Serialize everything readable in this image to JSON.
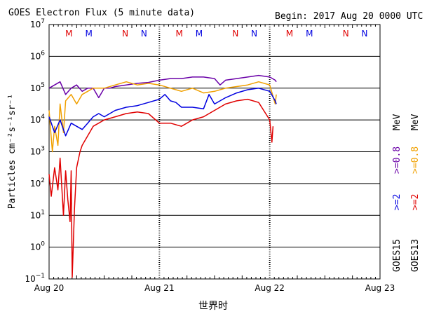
{
  "chart_data": {
    "type": "line",
    "title": "GOES Electron Flux (5 minute data)",
    "begin_label": "Begin: 2017 Aug 20 0000 UTC",
    "xlabel": "世界时",
    "ylabel": "Particles cm⁻²s⁻¹sr⁻¹",
    "x_ticks": [
      "Aug 20",
      "Aug 21",
      "Aug 22",
      "Aug 23"
    ],
    "x_range_days": [
      0,
      3
    ],
    "y_scale": "log",
    "y_range_exp": [
      -1,
      7
    ],
    "y_tick_exponents": [
      -1,
      0,
      1,
      2,
      3,
      4,
      5,
      6,
      7
    ],
    "threshold": 1000,
    "grid": "horizontal lines at each decade",
    "markers": [
      {
        "day": 0.18,
        "label": "M",
        "color": "#e00000"
      },
      {
        "day": 0.36,
        "label": "M",
        "color": "#0000e0"
      },
      {
        "day": 0.69,
        "label": "N",
        "color": "#e00000"
      },
      {
        "day": 0.86,
        "label": "N",
        "color": "#0000e0"
      },
      {
        "day": 1.18,
        "label": "M",
        "color": "#e00000"
      },
      {
        "day": 1.36,
        "label": "M",
        "color": "#0000e0"
      },
      {
        "day": 1.69,
        "label": "N",
        "color": "#e00000"
      },
      {
        "day": 1.86,
        "label": "N",
        "color": "#0000e0"
      },
      {
        "day": 2.18,
        "label": "M",
        "color": "#e00000"
      },
      {
        "day": 2.36,
        "label": "M",
        "color": "#0000e0"
      },
      {
        "day": 2.69,
        "label": "N",
        "color": "#e00000"
      },
      {
        "day": 2.86,
        "label": "N",
        "color": "#0000e0"
      }
    ],
    "legend": {
      "columns": [
        {
          "satellite": "GOES15",
          "lines": [
            {
              "text": ">=2",
              "color": "#0000e0"
            },
            {
              "text": ">=0.8",
              "color": "#6a00a8"
            }
          ],
          "unit": "MeV"
        },
        {
          "satellite": "GOES13",
          "lines": [
            {
              "text": ">=2",
              "color": "#e00000"
            },
            {
              "text": ">=0.8",
              "color": "#f0a000"
            }
          ],
          "unit": "MeV"
        }
      ]
    },
    "series": [
      {
        "name": "GOES15 >=0.8 MeV",
        "color": "#6a00a8",
        "points": [
          [
            0.0,
            5.0
          ],
          [
            0.05,
            5.1
          ],
          [
            0.1,
            5.2
          ],
          [
            0.15,
            4.8
          ],
          [
            0.2,
            5.0
          ],
          [
            0.25,
            5.1
          ],
          [
            0.3,
            4.9
          ],
          [
            0.35,
            5.0
          ],
          [
            0.4,
            5.0
          ],
          [
            0.45,
            4.7
          ],
          [
            0.5,
            5.0
          ],
          [
            0.55,
            5.0
          ],
          [
            0.6,
            5.05
          ],
          [
            0.7,
            5.1
          ],
          [
            0.8,
            5.15
          ],
          [
            0.9,
            5.18
          ],
          [
            1.0,
            5.25
          ],
          [
            1.1,
            5.3
          ],
          [
            1.2,
            5.3
          ],
          [
            1.3,
            5.35
          ],
          [
            1.4,
            5.35
          ],
          [
            1.5,
            5.3
          ],
          [
            1.55,
            5.1
          ],
          [
            1.6,
            5.25
          ],
          [
            1.7,
            5.3
          ],
          [
            1.8,
            5.35
          ],
          [
            1.9,
            5.4
          ],
          [
            2.0,
            5.35
          ],
          [
            2.05,
            5.25
          ],
          [
            2.06,
            5.2
          ]
        ]
      },
      {
        "name": "GOES13 >=0.8 MeV",
        "color": "#f0a000",
        "points": [
          [
            0.0,
            4.3
          ],
          [
            0.03,
            3.0
          ],
          [
            0.05,
            3.8
          ],
          [
            0.08,
            3.2
          ],
          [
            0.1,
            4.5
          ],
          [
            0.13,
            3.6
          ],
          [
            0.15,
            4.6
          ],
          [
            0.2,
            4.8
          ],
          [
            0.25,
            4.5
          ],
          [
            0.3,
            4.8
          ],
          [
            0.35,
            4.9
          ],
          [
            0.4,
            5.0
          ],
          [
            0.5,
            5.0
          ],
          [
            0.6,
            5.1
          ],
          [
            0.7,
            5.2
          ],
          [
            0.8,
            5.1
          ],
          [
            0.9,
            5.15
          ],
          [
            1.0,
            5.1
          ],
          [
            1.1,
            5.0
          ],
          [
            1.2,
            4.9
          ],
          [
            1.3,
            5.0
          ],
          [
            1.4,
            4.85
          ],
          [
            1.5,
            4.9
          ],
          [
            1.6,
            5.0
          ],
          [
            1.7,
            5.05
          ],
          [
            1.8,
            5.1
          ],
          [
            1.9,
            5.2
          ],
          [
            2.0,
            5.1
          ],
          [
            2.05,
            4.5
          ],
          [
            2.06,
            4.8
          ]
        ]
      },
      {
        "name": "GOES15 >=2 MeV",
        "color": "#0000e0",
        "points": [
          [
            0.0,
            4.1
          ],
          [
            0.05,
            3.6
          ],
          [
            0.1,
            4.0
          ],
          [
            0.15,
            3.5
          ],
          [
            0.2,
            3.9
          ],
          [
            0.25,
            3.8
          ],
          [
            0.3,
            3.7
          ],
          [
            0.35,
            3.9
          ],
          [
            0.4,
            4.1
          ],
          [
            0.45,
            4.2
          ],
          [
            0.5,
            4.1
          ],
          [
            0.6,
            4.3
          ],
          [
            0.7,
            4.4
          ],
          [
            0.8,
            4.45
          ],
          [
            0.9,
            4.55
          ],
          [
            1.0,
            4.65
          ],
          [
            1.05,
            4.8
          ],
          [
            1.1,
            4.6
          ],
          [
            1.15,
            4.55
          ],
          [
            1.2,
            4.4
          ],
          [
            1.3,
            4.4
          ],
          [
            1.4,
            4.35
          ],
          [
            1.45,
            4.8
          ],
          [
            1.5,
            4.5
          ],
          [
            1.6,
            4.7
          ],
          [
            1.7,
            4.85
          ],
          [
            1.8,
            4.95
          ],
          [
            1.9,
            5.0
          ],
          [
            2.0,
            4.9
          ],
          [
            2.05,
            4.6
          ],
          [
            2.06,
            4.5
          ]
        ]
      },
      {
        "name": "GOES13 >=2 MeV",
        "color": "#e00000",
        "points": [
          [
            0.0,
            2.3
          ],
          [
            0.02,
            1.6
          ],
          [
            0.05,
            2.5
          ],
          [
            0.08,
            1.8
          ],
          [
            0.1,
            2.8
          ],
          [
            0.13,
            1.0
          ],
          [
            0.15,
            2.4
          ],
          [
            0.17,
            1.5
          ],
          [
            0.19,
            0.8
          ],
          [
            0.2,
            2.4
          ],
          [
            0.21,
            -0.95
          ],
          [
            0.23,
            1.2
          ],
          [
            0.25,
            2.5
          ],
          [
            0.28,
            3.0
          ],
          [
            0.3,
            3.2
          ],
          [
            0.35,
            3.5
          ],
          [
            0.4,
            3.8
          ],
          [
            0.5,
            4.0
          ],
          [
            0.6,
            4.1
          ],
          [
            0.7,
            4.2
          ],
          [
            0.8,
            4.25
          ],
          [
            0.9,
            4.2
          ],
          [
            1.0,
            3.9
          ],
          [
            1.1,
            3.9
          ],
          [
            1.2,
            3.8
          ],
          [
            1.3,
            4.0
          ],
          [
            1.4,
            4.1
          ],
          [
            1.5,
            4.3
          ],
          [
            1.6,
            4.5
          ],
          [
            1.7,
            4.6
          ],
          [
            1.8,
            4.65
          ],
          [
            1.9,
            4.55
          ],
          [
            2.0,
            4.0
          ],
          [
            2.02,
            3.3
          ],
          [
            2.03,
            3.8
          ]
        ]
      }
    ]
  }
}
